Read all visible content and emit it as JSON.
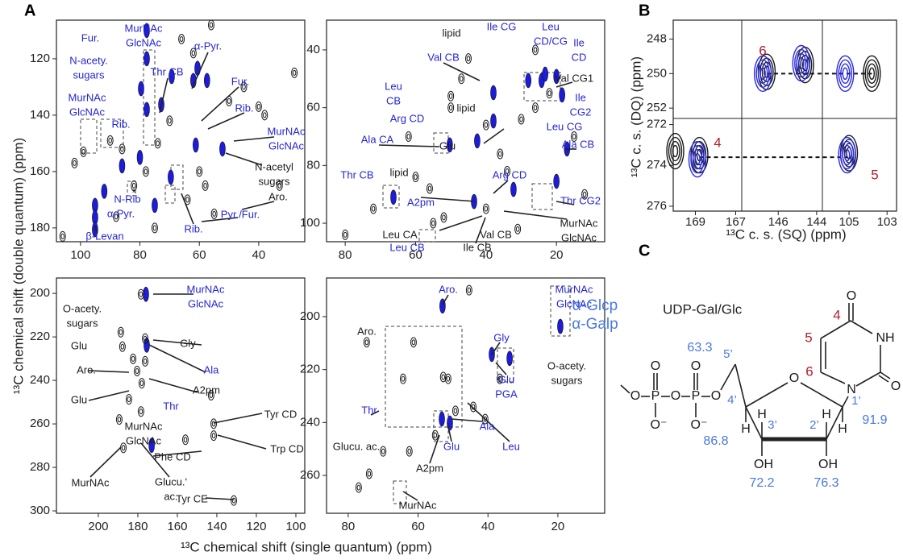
{
  "panel_labels": [
    "A",
    "B",
    "C"
  ],
  "panel_a": {
    "x_label": "¹³C chemical shift (single quantum) (ppm)",
    "y_label": "¹³C chemical shift (double quantum) (ppm)",
    "spectra": [
      {
        "xlim": [
          108.1,
          24.5
        ],
        "ylim": [
          106.3,
          184.9
        ],
        "xticks": [
          100,
          80,
          60,
          40
        ],
        "yticks": [
          120,
          140,
          160,
          180
        ],
        "peaks": [
          {
            "color": "#1c1cd9",
            "filled": true,
            "x": [
              95.1,
              95.1,
              95.1,
              77.7,
              77.7,
              77.7,
              79.6,
              72.8,
              69.3,
              62,
              60.6,
              57.4,
              61.2,
              69.6,
              52.2,
              92,
              86,
              80,
              75
            ],
            "y": [
              172,
              176.3,
              180.6,
              110,
              120,
              138,
              130.6,
              136.3,
              126.3,
              127.7,
              123.4,
              127.7,
              150.6,
              162,
              152,
              167,
              158,
              155,
              172
            ]
          },
          {
            "color": "#1a1a1a",
            "filled": false,
            "x": [
              106,
              102,
              99,
              90,
              86,
              82,
              78,
              74,
              70,
              66,
              62,
              58,
              55,
              50,
              45,
              40,
              38,
              33,
              28,
              64,
              60,
              56,
              75,
              88
            ],
            "y": [
              183,
              157,
              153,
              149,
              152,
              165,
              160,
              150,
              142,
              113,
              118,
              165,
              175,
              135,
              130,
              137,
              140,
              165,
              125,
              170,
              160,
              108,
              180,
              176
            ]
          }
        ],
        "annotations": [
          {
            "lines": [
              "MurNAc",
              "GlcNAc"
            ],
            "color": "#2525d6"
          },
          {
            "lines": [
              "Fur."
            ],
            "color": "#2525d6"
          },
          {
            "lines": [
              "Thr CB"
            ],
            "color": "#2525d6"
          },
          {
            "lines": [
              "α-Pyr."
            ],
            "color": "#2525d6"
          },
          {
            "lines": [
              "Fur."
            ],
            "color": "#2525d6"
          },
          {
            "lines": [
              "N-acety.",
              "sugars"
            ],
            "color": "#2525d6"
          },
          {
            "lines": [
              "Rib."
            ],
            "color": "#2525d6"
          },
          {
            "lines": [
              "MurNAc",
              "GlcNAc"
            ],
            "color": "#2525d6"
          },
          {
            "lines": [
              "Rib."
            ],
            "color": "#2525d6"
          },
          {
            "lines": [
              "MurNAc",
              "GlcNAc"
            ],
            "color": "#2525d6"
          },
          {
            "lines": [
              "N-acetyl",
              "sugars"
            ],
            "color": "#1a1a1a"
          },
          {
            "lines": [
              "Aro."
            ],
            "color": "#1a1a1a"
          },
          {
            "lines": [
              "Pyr./Fur."
            ],
            "color": "#2525d6"
          },
          {
            "lines": [
              "Rib."
            ],
            "color": "#2525d6"
          },
          {
            "lines": [
              "α-Pyr."
            ],
            "color": "#2525d6"
          },
          {
            "lines": [
              "N-Rib"
            ],
            "color": "#2525d6"
          },
          {
            "lines": [
              "β-Levan"
            ],
            "color": "#2525d6"
          },
          {
            "lines": [
              "*"
            ],
            "color": "#1a1a1a"
          }
        ]
      },
      {
        "xlim": [
          85.3,
          6.3
        ],
        "ylim": [
          29.7,
          106.4
        ],
        "xticks": [
          80,
          60,
          40,
          20
        ],
        "yticks": [
          40,
          60,
          80,
          100
        ],
        "peaks": [
          {
            "color": "#1c1cd9",
            "filled": true,
            "x": [
              50.3,
              42.5,
              37.9,
              28,
              24.2,
              20,
              18.4,
              17,
              20,
              66.3,
              43.4,
              32.2,
              37.9,
              23.2
            ],
            "y": [
              72.9,
              71.5,
              64.6,
              50.6,
              50.6,
              49.2,
              55.6,
              74.3,
              85.5,
              91,
              92.5,
              88.3,
              54.8,
              48.4
            ]
          },
          {
            "color": "#1a1a1a",
            "filled": false,
            "x": [
              80,
              72,
              62,
              56,
              52,
              50,
              47,
              45,
              40,
              36,
              34,
              30,
              26,
              22,
              15,
              12,
              55,
              60,
              50,
              40,
              31,
              26
            ],
            "y": [
              104,
              95,
              70,
              88,
              98,
              60,
              50,
              43,
              66,
              76,
              82,
              64,
              60,
              55,
              70,
              90,
              100,
              84,
              56,
              95,
              102,
              40
            ]
          }
        ],
        "annotations": [
          {
            "lines": [
              "lipid"
            ],
            "color": "#1a1a1a"
          },
          {
            "lines": [
              "Ile CG"
            ],
            "color": "#2525d6"
          },
          {
            "lines": [
              "Leu",
              "CD/CG"
            ],
            "color": "#2525d6"
          },
          {
            "lines": [
              "Ile",
              "CD"
            ],
            "color": "#2525d6"
          },
          {
            "lines": [
              "Val CB"
            ],
            "color": "#2525d6"
          },
          {
            "lines": [
              "Val CG1"
            ],
            "color": "#1a1a1a"
          },
          {
            "lines": [
              "Leu",
              "CB"
            ],
            "color": "#2525d6"
          },
          {
            "lines": [
              "lipid"
            ],
            "color": "#1a1a1a"
          },
          {
            "lines": [
              "Ile",
              "CG2"
            ],
            "color": "#2525d6"
          },
          {
            "lines": [
              "Arg CD"
            ],
            "color": "#2525d6"
          },
          {
            "lines": [
              "Leu CG"
            ],
            "color": "#2525d6"
          },
          {
            "lines": [
              "Ala CA"
            ],
            "color": "#2525d6"
          },
          {
            "lines": [
              "Ala CB"
            ],
            "color": "#2525d6"
          },
          {
            "lines": [
              "Glu"
            ],
            "color": "#1a1a1a"
          },
          {
            "lines": [
              "Thr CB"
            ],
            "color": "#2525d6"
          },
          {
            "lines": [
              "lipid"
            ],
            "color": "#1a1a1a"
          },
          {
            "lines": [
              "Arg CD"
            ],
            "color": "#2525d6"
          },
          {
            "lines": [
              "A2pm"
            ],
            "color": "#2525d6"
          },
          {
            "lines": [
              "Thr CG2"
            ],
            "color": "#2525d6"
          },
          {
            "lines": [
              "MurNAc",
              "GlcNAc"
            ],
            "color": "#1a1a1a"
          },
          {
            "lines": [
              "Leu CA"
            ],
            "color": "#1a1a1a"
          },
          {
            "lines": [
              "Val CB"
            ],
            "color": "#1a1a1a"
          },
          {
            "lines": [
              "Leu CB"
            ],
            "color": "#2525d6"
          },
          {
            "lines": [
              "Ile CB"
            ],
            "color": "#1a1a1a"
          }
        ]
      },
      {
        "xlim": [
          221.2,
          95.5
        ],
        "ylim": [
          192.9,
          301.1
        ],
        "xticks": [
          200,
          180,
          160,
          140,
          120,
          100
        ],
        "yticks": [
          200,
          220,
          240,
          260,
          280,
          300
        ],
        "peaks": [
          {
            "color": "#1c1cd9",
            "filled": true,
            "x": [
              175.9,
              175.5,
              173
            ],
            "y": [
              200.4,
              223.8,
              269.9
            ]
          },
          {
            "color": "#1a1a1a",
            "filled": false,
            "x": [
              188.6,
              187.8,
              182.4,
              180.4,
              178,
              176.3,
              178.4,
              176.3,
              189.4,
              187.3,
              142.9,
              141.6,
              141.6,
              155.9,
              131.4,
              184.5,
              178.4
            ],
            "y": [
              217.8,
              224.5,
              230.1,
              235.7,
              241.3,
              231.2,
              200.4,
              220.8,
              258,
              271,
              246.8,
              259.9,
              265.4,
              267.3,
              295.2,
              248.7,
              254.3
            ]
          }
        ],
        "annotations": [
          {
            "lines": [
              "O-acety.",
              "sugars"
            ],
            "color": "#1a1a1a"
          },
          {
            "lines": [
              "MurNAc",
              "GlcNAc"
            ],
            "color": "#2525d6"
          },
          {
            "lines": [
              "Glu"
            ],
            "color": "#1a1a1a"
          },
          {
            "lines": [
              "Gly"
            ],
            "color": "#1a1a1a"
          },
          {
            "lines": [
              "Aro."
            ],
            "color": "#1a1a1a"
          },
          {
            "lines": [
              "Ala"
            ],
            "color": "#2525d6"
          },
          {
            "lines": [
              "A2pm"
            ],
            "color": "#1a1a1a"
          },
          {
            "lines": [
              "Glu"
            ],
            "color": "#1a1a1a"
          },
          {
            "lines": [
              "Thr"
            ],
            "color": "#2525d6"
          },
          {
            "lines": [
              "MurNAc",
              "GlcNAc"
            ],
            "color": "#1a1a1a"
          },
          {
            "lines": [
              "Tyr CD"
            ],
            "color": "#1a1a1a"
          },
          {
            "lines": [
              "Phe CD"
            ],
            "color": "#1a1a1a"
          },
          {
            "lines": [
              "Trp CD"
            ],
            "color": "#1a1a1a"
          },
          {
            "lines": [
              "MurNAc"
            ],
            "color": "#1a1a1a"
          },
          {
            "lines": [
              "Glucu.'",
              "ac."
            ],
            "color": "#1a1a1a"
          },
          {
            "lines": [
              "Tyr CE"
            ],
            "color": "#1a1a1a"
          }
        ]
      },
      {
        "xlim": [
          86.2,
          6.6
        ],
        "ylim": [
          185.4,
          274.3
        ],
        "xticks": [
          80,
          60,
          40,
          20
        ],
        "yticks": [
          200,
          220,
          240,
          260
        ],
        "peaks": [
          {
            "color": "#1c1cd9",
            "filled": true,
            "x": [
              53,
              38.9,
              33.8,
              19.3,
              50.9,
              53.2
            ],
            "y": [
              196,
              214.3,
              215.8,
              203.7,
              240.2,
              238.7
            ]
          },
          {
            "color": "#1a1a1a",
            "filled": false,
            "x": [
              74.7,
              61.3,
              64.3,
              52.8,
              49.3,
              44.2,
              40.8,
              55.1,
              62.5,
              77,
              74,
              70,
              45.4,
              51.4,
              36.6
            ],
            "y": [
              209.7,
              209.7,
              223.5,
              222.8,
              235.6,
              234.1,
              238.7,
              244.8,
              250.9,
              264.6,
              259.4,
              250.9,
              190,
              223.5,
              223.5
            ]
          }
        ],
        "annotations": [
          {
            "lines": [
              "Aro."
            ],
            "color": "#2525d6"
          },
          {
            "lines": [
              "MurNAc",
              "GlcNAc"
            ],
            "color": "#2525d6"
          },
          {
            "lines": [
              "Aro."
            ],
            "color": "#1a1a1a"
          },
          {
            "lines": [
              "Gly"
            ],
            "color": "#2525d6"
          },
          {
            "lines": [
              "O-acety.",
              "sugars"
            ],
            "color": "#1a1a1a"
          },
          {
            "lines": [
              "Glu",
              "PGA"
            ],
            "color": "#2525d6"
          },
          {
            "lines": [
              "Thr"
            ],
            "color": "#2525d6"
          },
          {
            "lines": [
              "Ala"
            ],
            "color": "#2525d6"
          },
          {
            "lines": [
              "Glucu. ac."
            ],
            "color": "#1a1a1a"
          },
          {
            "lines": [
              "Glu"
            ],
            "color": "#2525d6"
          },
          {
            "lines": [
              "Leu"
            ],
            "color": "#2525d6"
          },
          {
            "lines": [
              "A2pm"
            ],
            "color": "#1a1a1a"
          },
          {
            "lines": [
              "MurNAc"
            ],
            "color": "#1a1a1a"
          }
        ]
      }
    ]
  },
  "panel_b": {
    "x_label": "¹³C c. s. (SQ) (ppm)",
    "y_label": "¹³C c. s. (DQ) (ppm)",
    "segments": [
      {
        "xlim": [
          170.1,
          166.7
        ],
        "xticks": [
          169,
          167
        ]
      },
      {
        "xlim": [
          147.9,
          143.7
        ],
        "xticks": [
          146,
          144
        ]
      },
      {
        "xlim": [
          106.4,
          102.5
        ],
        "xticks": [
          105,
          103
        ]
      }
    ],
    "rows": [
      {
        "ylim": [
          246.9,
          252.6
        ],
        "yticks": [
          248,
          250,
          252
        ],
        "series": [
          {
            "color": "#1a1a1a",
            "x": [
              146.6,
              144.6,
              103.8
            ],
            "y": [
              249.9,
              249.5,
              250
            ]
          },
          {
            "color": "#2a2ae0",
            "x": [
              146.8,
              144.8,
              105.2
            ],
            "y": [
              250,
              249.4,
              250
            ]
          }
        ],
        "correlations": [
          {
            "y": 250,
            "x": [
              146.6,
              103.8
            ]
          }
        ]
      },
      {
        "ylim": [
          271.7,
          276.24
        ],
        "yticks": [
          272,
          274,
          276
        ],
        "series": [
          {
            "color": "#1a1a1a",
            "x": [
              168.8,
              105,
              170
            ],
            "y": [
              273.5,
              273.4,
              273.3
            ]
          },
          {
            "color": "#2a2ae0",
            "x": [
              168.9,
              105.1
            ],
            "y": [
              273.7,
              273.5
            ]
          }
        ],
        "correlations": [
          {
            "y": 273.6,
            "x": [
              168.8,
              105.1
            ]
          }
        ]
      }
    ],
    "labels": [
      "6",
      "4",
      "5"
    ],
    "label_color": "#b0202a"
  },
  "panel_c": {
    "title": "UDP-Gal/Glc",
    "sugars": [
      "α-Glcp",
      "α-Galp"
    ],
    "sugar_color": "#4a78e0",
    "atoms": [
      "O",
      "P",
      "O",
      "P",
      "O",
      "O",
      "O",
      "O⁻",
      "O⁻",
      "H",
      "H",
      "H",
      "H",
      "OH",
      "OH",
      "N",
      "NH",
      "O",
      "O",
      "O"
    ],
    "positions": [
      "5’",
      "4’",
      "3’",
      "2’",
      "1’"
    ],
    "shifts": [
      "63.3",
      "86.8",
      "72.2",
      "76.3",
      "91.9"
    ],
    "base_numbers": [
      "4",
      "5",
      "6"
    ],
    "base_number_color": "#b0202a"
  }
}
